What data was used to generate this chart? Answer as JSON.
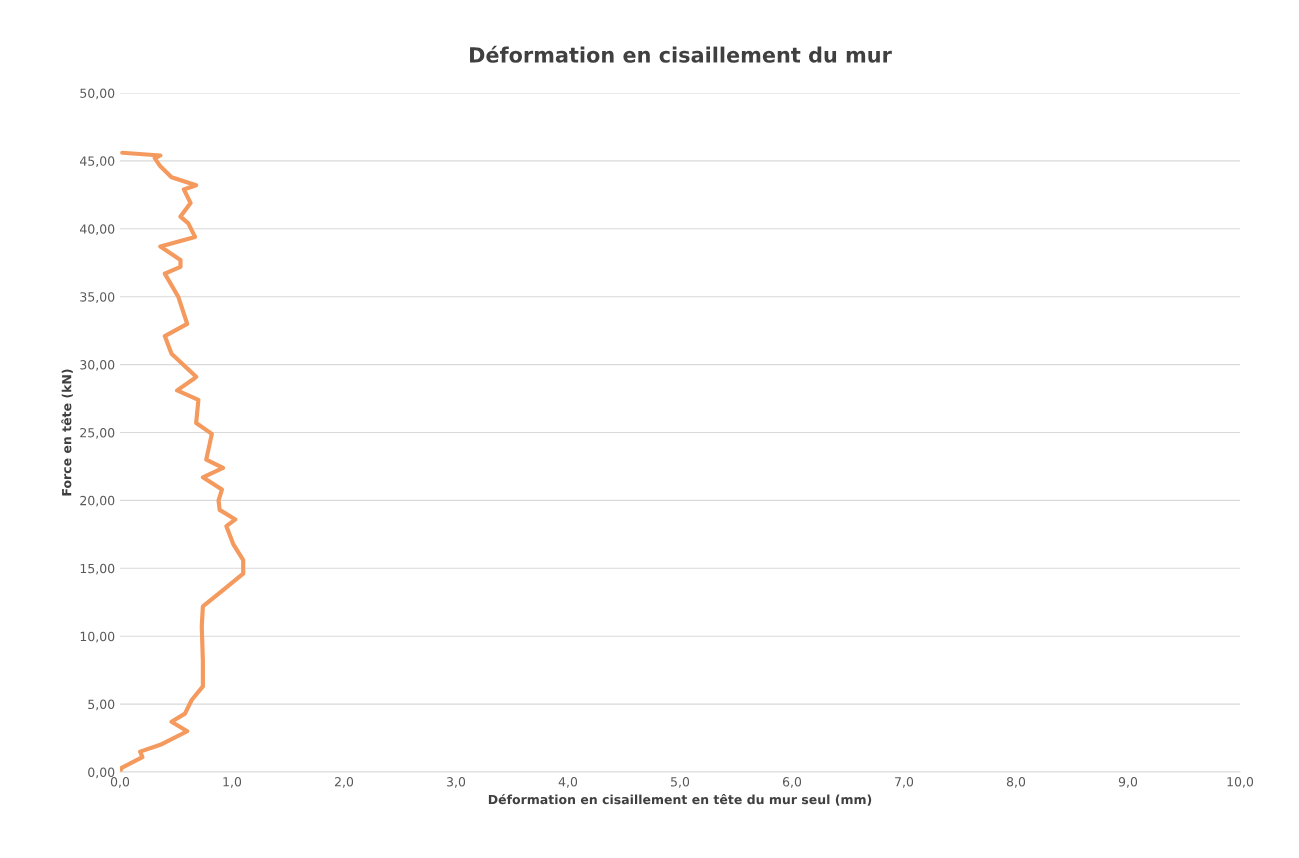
{
  "chart_data": {
    "type": "line",
    "title": "Déformation en cisaillement du mur",
    "xlabel": "Déformation en cisaillement en tête du mur seul (mm)",
    "ylabel": "Force en tête (kN)",
    "series": [
      {
        "color": "#f59a5e",
        "x": [
          0,
          0.015,
          0.2,
          0.18,
          0.36,
          0.6,
          0.46,
          0.58,
          0.64,
          0.74,
          0.74,
          0.73,
          0.74,
          0.92,
          1.1,
          1.1,
          1.01,
          0.95,
          1.03,
          0.89,
          0.88,
          0.91,
          0.74,
          0.92,
          0.77,
          0.82,
          0.68,
          0.7,
          0.51,
          0.65,
          0.68,
          0.46,
          0.4,
          0.6,
          0.52,
          0.4,
          0.54,
          0.54,
          0.36,
          0.67,
          0.61,
          0.54,
          0.63,
          0.57,
          0.68,
          0.46,
          0.36,
          0.31,
          0.36,
          0.02
        ],
        "values": [
          0,
          0.3,
          1.1,
          1.5,
          2.0,
          3.0,
          3.7,
          4.3,
          5.3,
          6.3,
          8.2,
          10.7,
          12.2,
          13.4,
          14.6,
          15.6,
          16.8,
          18.1,
          18.6,
          19.3,
          20.0,
          20.8,
          21.7,
          22.4,
          23.0,
          24.9,
          25.7,
          27.4,
          28.1,
          28.9,
          29.1,
          30.8,
          32.1,
          33.0,
          35.0,
          36.7,
          37.2,
          37.7,
          38.7,
          39.4,
          40.4,
          40.9,
          41.9,
          42.9,
          43.2,
          43.8,
          44.6,
          45.2,
          45.4,
          45.6
        ]
      }
    ],
    "xlim": [
      0,
      10
    ],
    "xticks": [
      {
        "value": 0,
        "label": "0,0"
      },
      {
        "value": 1,
        "label": "1,0"
      },
      {
        "value": 2,
        "label": "2,0"
      },
      {
        "value": 3,
        "label": "3,0"
      },
      {
        "value": 4,
        "label": "4,0"
      },
      {
        "value": 5,
        "label": "5,0"
      },
      {
        "value": 6,
        "label": "6,0"
      },
      {
        "value": 7,
        "label": "7,0"
      },
      {
        "value": 8,
        "label": "8,0"
      },
      {
        "value": 9,
        "label": "9,0"
      },
      {
        "value": 10,
        "label": "10,0"
      }
    ],
    "ylim": [
      0,
      50
    ],
    "yticks": [
      {
        "value": 0,
        "label": "0,00"
      },
      {
        "value": 5,
        "label": "5,00"
      },
      {
        "value": 10,
        "label": "10,00"
      },
      {
        "value": 15,
        "label": "15,00"
      },
      {
        "value": 20,
        "label": "20,00"
      },
      {
        "value": 25,
        "label": "25,00"
      },
      {
        "value": 30,
        "label": "30,00"
      },
      {
        "value": 35,
        "label": "35,00"
      },
      {
        "value": 40,
        "label": "40,00"
      },
      {
        "value": 45,
        "label": "45,00"
      },
      {
        "value": 50,
        "label": "50,00"
      }
    ],
    "grid": "y"
  }
}
